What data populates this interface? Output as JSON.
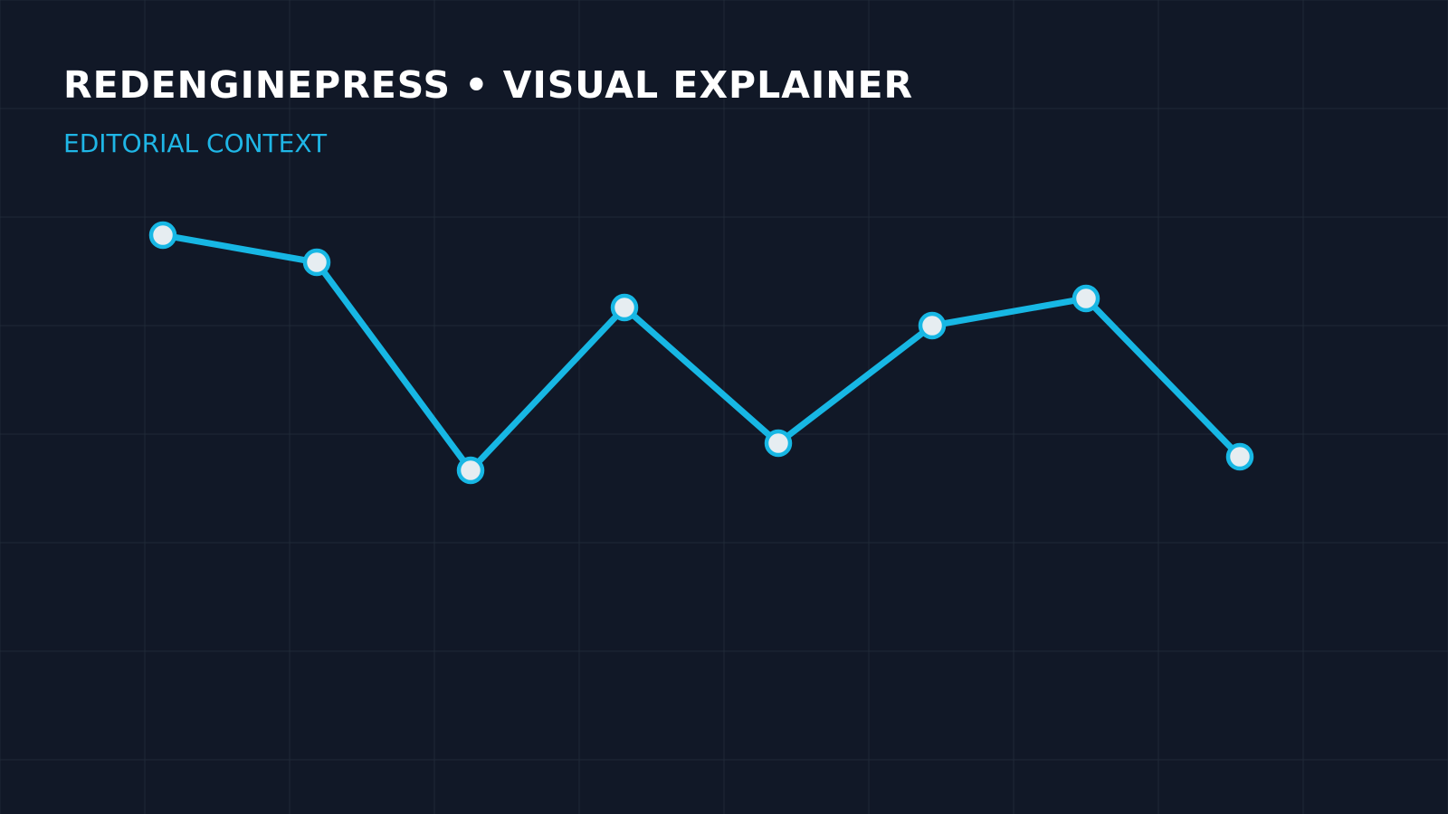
{
  "chart_data": {
    "type": "line",
    "title": "REDENGINEPRESS • VISUAL EXPLAINER",
    "subtitle": "EDITORIAL CONTEXT",
    "categories": [
      null,
      null,
      null,
      null,
      null,
      null,
      null,
      null
    ],
    "series": [
      {
        "color": "#17b7e4",
        "values": [
          88,
          82,
          36,
          72,
          42,
          68,
          74,
          39
        ]
      }
    ],
    "ylim": [
      0,
      100
    ]
  }
}
